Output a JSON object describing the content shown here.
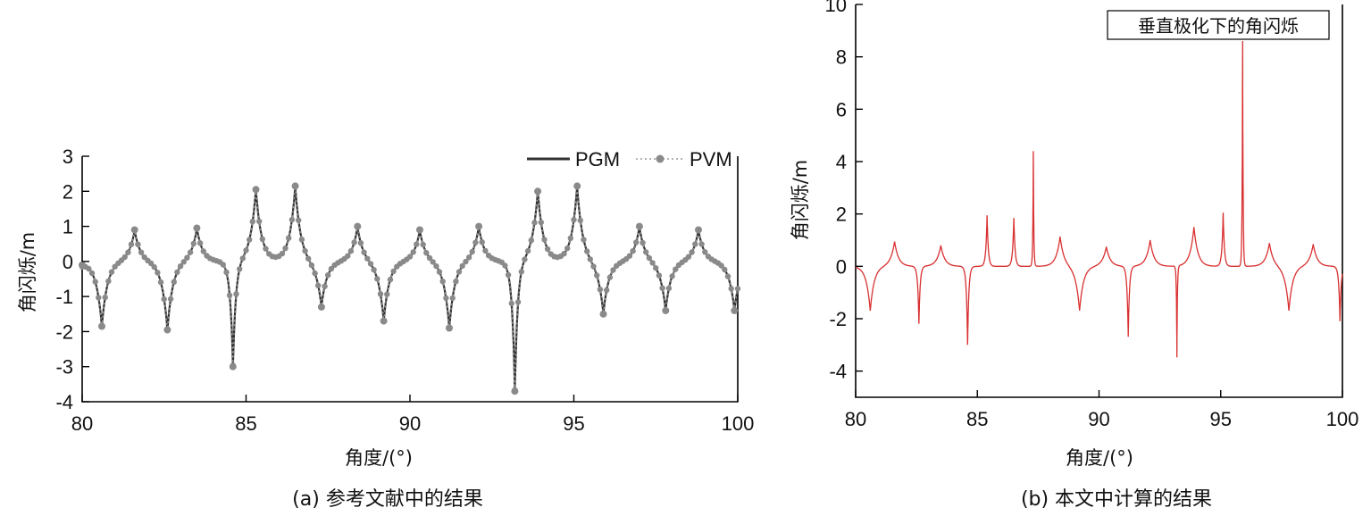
{
  "chart_data": [
    {
      "type": "line",
      "caption": "(a) 参考文献中的结果",
      "xlabel": "角度/(°)",
      "ylabel": "角闪烁/m",
      "xlim": [
        80,
        100
      ],
      "ylim": [
        -4,
        3
      ],
      "xticks": [
        80,
        85,
        90,
        95,
        100
      ],
      "yticks": [
        3,
        2,
        1,
        0,
        -1,
        -2,
        -3,
        -4
      ],
      "legend": {
        "placement": "top-right"
      },
      "series": [
        {
          "name": "PGM",
          "style": "solid",
          "color": "#3a3a3a"
        },
        {
          "name": "PVM",
          "style": "dotted-markers",
          "color": "#8a8a8a"
        }
      ],
      "peaks": [
        {
          "x": 80.0,
          "y": -0.1
        },
        {
          "x": 80.6,
          "y": -1.85
        },
        {
          "x": 81.6,
          "y": 0.9
        },
        {
          "x": 82.6,
          "y": -1.95
        },
        {
          "x": 83.5,
          "y": 0.95
        },
        {
          "x": 84.6,
          "y": -3.0
        },
        {
          "x": 85.3,
          "y": 2.05
        },
        {
          "x": 86.5,
          "y": 2.15
        },
        {
          "x": 87.3,
          "y": -1.3
        },
        {
          "x": 88.4,
          "y": 1.0
        },
        {
          "x": 89.2,
          "y": -1.7
        },
        {
          "x": 90.3,
          "y": 0.9
        },
        {
          "x": 91.2,
          "y": -1.9
        },
        {
          "x": 92.1,
          "y": 1.0
        },
        {
          "x": 93.2,
          "y": -3.7
        },
        {
          "x": 93.9,
          "y": 2.0
        },
        {
          "x": 95.1,
          "y": 2.15
        },
        {
          "x": 95.9,
          "y": -1.5
        },
        {
          "x": 97.0,
          "y": 1.0
        },
        {
          "x": 97.8,
          "y": -1.4
        },
        {
          "x": 98.8,
          "y": 0.9
        },
        {
          "x": 99.9,
          "y": -1.4
        }
      ]
    },
    {
      "type": "line",
      "caption": "(b) 本文中计算的结果",
      "title": "垂直极化下的角闪烁",
      "xlabel": "角度/(°)",
      "ylabel": "角闪烁/m",
      "xlim": [
        80,
        100
      ],
      "ylim": [
        -5,
        10
      ],
      "xticks": [
        80,
        85,
        90,
        95,
        100
      ],
      "yticks": [
        10,
        8,
        6,
        4,
        2,
        0,
        -2,
        -4
      ],
      "series": [
        {
          "name": "",
          "color": "#d93030"
        }
      ],
      "peaks": [
        {
          "x": 80.0,
          "y": 0.0
        },
        {
          "x": 80.6,
          "y": -1.7
        },
        {
          "x": 81.6,
          "y": 0.95
        },
        {
          "x": 82.6,
          "y": -2.2
        },
        {
          "x": 83.5,
          "y": 0.8
        },
        {
          "x": 84.6,
          "y": -3.0
        },
        {
          "x": 85.4,
          "y": 1.95
        },
        {
          "x": 86.5,
          "y": 1.85
        },
        {
          "x": 87.3,
          "y": 4.4
        },
        {
          "x": 88.4,
          "y": 1.15
        },
        {
          "x": 89.2,
          "y": -1.7
        },
        {
          "x": 90.3,
          "y": 0.75
        },
        {
          "x": 91.2,
          "y": -2.7
        },
        {
          "x": 92.1,
          "y": 1.0
        },
        {
          "x": 93.2,
          "y": -3.5
        },
        {
          "x": 93.9,
          "y": 1.5
        },
        {
          "x": 95.1,
          "y": 2.05
        },
        {
          "x": 95.9,
          "y": 8.6
        },
        {
          "x": 97.0,
          "y": 0.9
        },
        {
          "x": 97.8,
          "y": -1.7
        },
        {
          "x": 98.8,
          "y": 0.85
        },
        {
          "x": 99.9,
          "y": -2.1
        }
      ]
    }
  ]
}
